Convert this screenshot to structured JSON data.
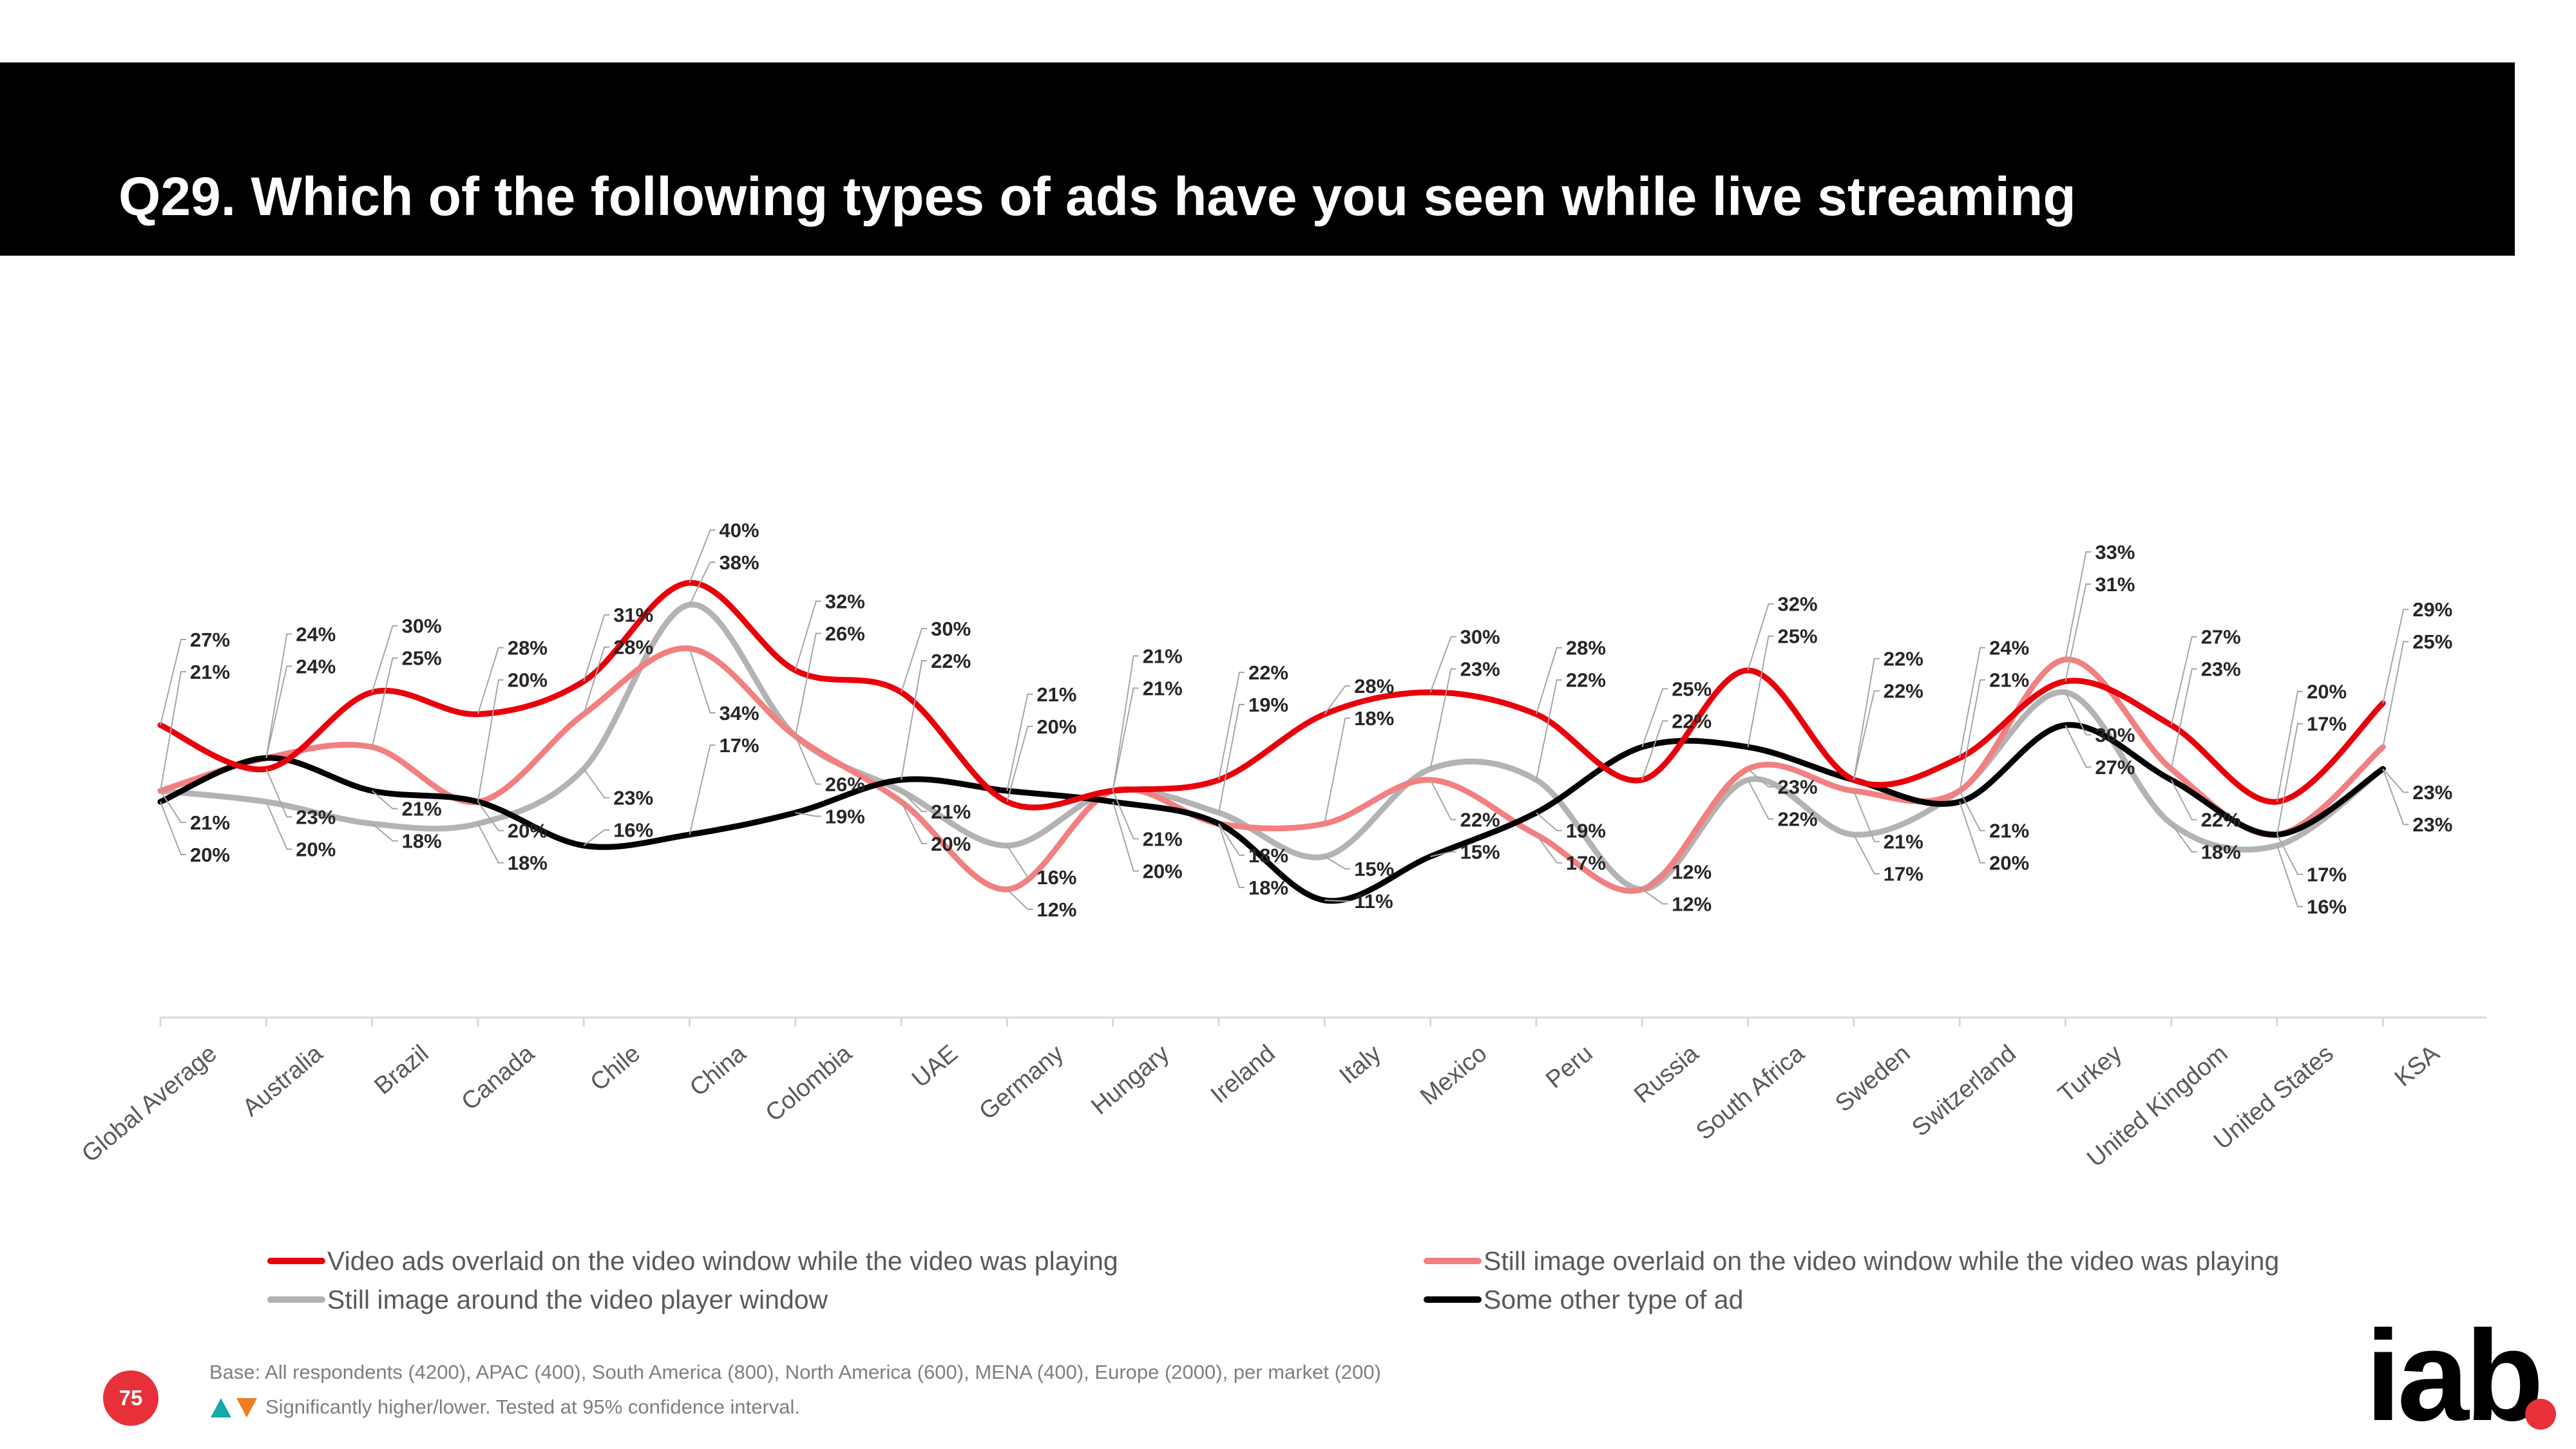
{
  "header": {
    "title": "Q29. Which of the following types of ads have you seen while live streaming"
  },
  "colors": {
    "s1": "#e8000b",
    "s2": "#f28080",
    "s3": "#b3b3b3",
    "s4": "#000000",
    "badge": "#e8303a",
    "up": "#17a9a9",
    "down": "#f07d1e"
  },
  "chart_data": {
    "type": "line",
    "categories": [
      "Global Average",
      "Australia",
      "Brazil",
      "Canada",
      "Chile",
      "China",
      "Colombia",
      "UAE",
      "Germany",
      "Hungary",
      "Ireland",
      "Italy",
      "Mexico",
      "Peru",
      "Russia",
      "South Africa",
      "Sweden",
      "Switzerland",
      "Turkey",
      "United Kingdom",
      "United States",
      "KSA"
    ],
    "series": [
      {
        "name": "Video ads overlaid on the video window while the video was playing",
        "color_key": "s1",
        "values": [
          27,
          23,
          30,
          28,
          31,
          40,
          32,
          30,
          20,
          21,
          22,
          28,
          30,
          28,
          22,
          32,
          22,
          24,
          31,
          27,
          20,
          29
        ]
      },
      {
        "name": "Still image overlaid on the video window while the video was playing",
        "color_key": "s2",
        "values": [
          21,
          24,
          25,
          20,
          28,
          34,
          26,
          20,
          12,
          21,
          18,
          18,
          22,
          17,
          12,
          23,
          21,
          21,
          33,
          23,
          17,
          25
        ]
      },
      {
        "name": "Still image around the video player window",
        "color_key": "s3",
        "values": [
          21,
          20,
          18,
          18,
          23,
          38,
          26,
          21,
          16,
          21,
          19,
          15,
          23,
          22,
          12,
          22,
          17,
          21,
          30,
          18,
          16,
          23
        ]
      },
      {
        "name": "Some other type of ad",
        "color_key": "s4",
        "values": [
          20,
          24,
          21,
          20,
          16,
          17,
          19,
          22,
          21,
          20,
          18,
          11,
          15,
          19,
          25,
          25,
          22,
          20,
          27,
          22,
          17,
          23
        ]
      }
    ],
    "ylim": [
      5,
      45
    ],
    "grid": false,
    "legend": "bottom"
  },
  "footer": {
    "base": "Base: All respondents (4200), APAC (400), South America (800), North America (600), MENA (400), Europe (2000), per market (200)",
    "significance": "Significantly higher/lower. Tested at 95% confidence interval.",
    "page_number": "75",
    "logo_text": "iab"
  }
}
